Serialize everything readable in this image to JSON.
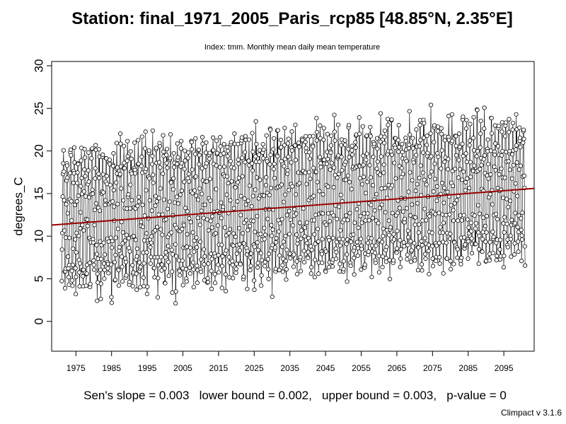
{
  "chart_data": {
    "type": "line",
    "title": "Station: final_1971_2005_Paris_rcp85 [48.85°N, 2.35°E]",
    "subtitle": "Index: tmm. Monthly mean daily mean temperature",
    "xlabel": "",
    "ylabel": "degrees_C",
    "xlim": [
      1968.2,
      2103.5
    ],
    "ylim": [
      -3.5,
      30.5
    ],
    "x_ticks": [
      1975,
      1985,
      1995,
      2005,
      2015,
      2025,
      2035,
      2045,
      2055,
      2065,
      2075,
      2085,
      2095
    ],
    "y_ticks": [
      0,
      5,
      10,
      15,
      20,
      25,
      30
    ],
    "grid": false,
    "series": [
      {
        "style": "line-with-open-circles",
        "description_of_values": "monthly mean daily mean temperature, one value per month Jan 1971 – Dec 2100",
        "start_year": 1971,
        "end_year": 2100,
        "values_per_year": 12,
        "annual_mean": [
          11.9,
          11.6,
          12.1,
          11.8,
          12.3,
          12.0,
          11.7,
          11.9,
          12.4,
          12.1,
          12.2,
          11.8,
          12.6,
          12.0,
          11.9,
          12.3,
          12.5,
          12.2,
          12.0,
          12.7,
          12.4,
          12.1,
          12.6,
          12.3,
          12.8,
          12.5,
          12.2,
          12.9,
          12.6,
          12.4,
          12.8,
          12.5,
          13.0,
          12.7,
          12.4,
          12.9,
          13.1,
          12.8,
          12.6,
          13.2,
          12.9,
          12.7,
          13.1,
          13.3,
          12.9,
          13.2,
          13.4,
          13.0,
          12.8,
          13.3,
          13.5,
          13.1,
          13.4,
          13.2,
          13.6,
          13.3,
          13.1,
          13.7,
          13.4,
          13.2,
          13.8,
          13.5,
          13.3,
          13.7,
          13.9,
          13.6,
          13.4,
          13.9,
          14.1,
          13.7,
          13.5,
          14.0,
          14.2,
          13.8,
          14.1,
          13.9,
          14.3,
          14.0,
          13.8,
          14.4,
          14.1,
          13.9,
          14.5,
          14.2,
          14.0,
          14.6,
          14.3,
          14.1,
          14.5,
          14.7,
          14.3,
          14.2,
          14.6,
          14.8,
          14.4,
          14.7,
          14.5,
          14.9,
          14.6,
          14.4,
          15.0,
          14.7,
          14.5,
          15.1,
          14.8,
          14.6,
          15.0,
          15.2,
          14.9,
          14.7,
          15.3,
          15.0,
          14.8,
          15.4,
          15.1,
          14.9,
          15.3,
          15.5,
          15.2,
          15.0,
          15.6,
          15.3,
          15.1,
          15.5,
          15.7,
          15.4,
          15.2,
          15.8,
          15.5,
          15.3
        ],
        "seasonal_amplitude": 7.6
      },
      {
        "style": "trend-line",
        "color": "#990000",
        "x": [
          1968.2,
          2103.5
        ],
        "y": [
          11.3,
          15.6
        ]
      }
    ],
    "annotations": {
      "stats": "Sen's slope = 0.003   lower bound = 0.002,   upper bound = 0.003,   p-value = 0",
      "version": "Climpact v 3.1.6"
    }
  }
}
